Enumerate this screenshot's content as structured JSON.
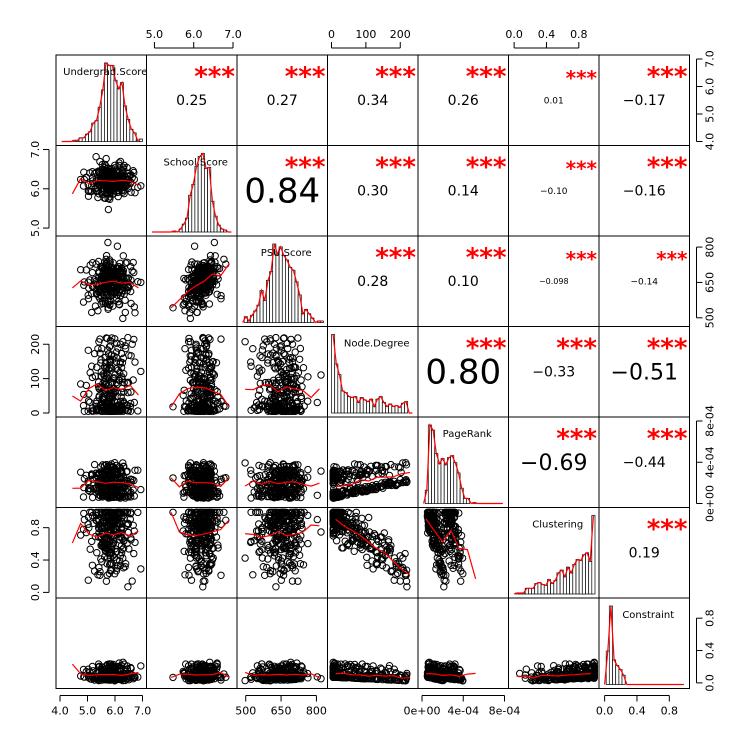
{
  "chart_data": {
    "type": "scatter-matrix",
    "variables": [
      "Undergrad.Score",
      "School.Score",
      "PSU.Score",
      "Node.Degree",
      "PageRank",
      "Clustering",
      "Constraint"
    ],
    "ranges": [
      [
        4.0,
        7.0
      ],
      [
        4.9,
        7.0
      ],
      [
        480,
        830
      ],
      [
        0,
        240
      ],
      [
        0,
        0.0008
      ],
      [
        -0.02,
        1.0
      ],
      [
        -0.02,
        1.0
      ]
    ],
    "hist_shapes": [
      "normal-left-skew",
      "normal-left-skew",
      "normal",
      "right-skew",
      "bimodal",
      "left-skew",
      "right-skew"
    ],
    "correlations": [
      {
        "i": 0,
        "j": 1,
        "value": "0.25",
        "stars": "***",
        "size": "small"
      },
      {
        "i": 0,
        "j": 2,
        "value": "0.27",
        "stars": "***",
        "size": "small"
      },
      {
        "i": 0,
        "j": 3,
        "value": "0.34",
        "stars": "***",
        "size": "small"
      },
      {
        "i": 0,
        "j": 4,
        "value": "0.26",
        "stars": "***",
        "size": "small"
      },
      {
        "i": 0,
        "j": 5,
        "value": "0.01",
        "stars": "***",
        "size": "tiny"
      },
      {
        "i": 0,
        "j": 6,
        "value": "−0.17",
        "stars": "***",
        "size": "small"
      },
      {
        "i": 1,
        "j": 2,
        "value": "0.84",
        "stars": "***",
        "size": "large"
      },
      {
        "i": 1,
        "j": 3,
        "value": "0.30",
        "stars": "***",
        "size": "small"
      },
      {
        "i": 1,
        "j": 4,
        "value": "0.14",
        "stars": "***",
        "size": "small"
      },
      {
        "i": 1,
        "j": 5,
        "value": "−0.10",
        "stars": "***",
        "size": "tiny"
      },
      {
        "i": 1,
        "j": 6,
        "value": "−0.16",
        "stars": "***",
        "size": "small"
      },
      {
        "i": 2,
        "j": 3,
        "value": "0.28",
        "stars": "***",
        "size": "small"
      },
      {
        "i": 2,
        "j": 4,
        "value": "0.10",
        "stars": "***",
        "size": "small"
      },
      {
        "i": 2,
        "j": 5,
        "value": "−0.098",
        "stars": "***",
        "size": "micro"
      },
      {
        "i": 2,
        "j": 6,
        "value": "−0.14",
        "stars": "***",
        "size": "tiny"
      },
      {
        "i": 3,
        "j": 4,
        "value": "0.80",
        "stars": "***",
        "size": "large"
      },
      {
        "i": 3,
        "j": 5,
        "value": "−0.33",
        "stars": "***",
        "size": "small"
      },
      {
        "i": 3,
        "j": 6,
        "value": "−0.51",
        "stars": "***",
        "size": "medium"
      },
      {
        "i": 4,
        "j": 5,
        "value": "−0.69",
        "stars": "***",
        "size": "medium"
      },
      {
        "i": 4,
        "j": 6,
        "value": "−0.44",
        "stars": "***",
        "size": "small"
      },
      {
        "i": 5,
        "j": 6,
        "value": "0.19",
        "stars": "***",
        "size": "small"
      }
    ],
    "axes": {
      "top": [
        {
          "col": 1,
          "ticks": [
            {
              "v": 5.0,
              "label": "5.0"
            },
            {
              "v": 6.0,
              "label": "6.0"
            },
            {
              "v": 7.0,
              "label": "7.0"
            }
          ]
        },
        {
          "col": 3,
          "ticks": [
            {
              "v": 0,
              "label": "0"
            },
            {
              "v": 100,
              "label": "100"
            },
            {
              "v": 200,
              "label": "200"
            }
          ]
        },
        {
          "col": 5,
          "ticks": [
            {
              "v": 0.0,
              "label": "0.0"
            },
            {
              "v": 0.4,
              "label": "0.4"
            },
            {
              "v": 0.8,
              "label": "0.8"
            }
          ]
        }
      ],
      "bottom": [
        {
          "col": 0,
          "ticks": [
            {
              "v": 4.0,
              "label": "4.0"
            },
            {
              "v": 5.0,
              "label": "5.0"
            },
            {
              "v": 6.0,
              "label": "6.0"
            },
            {
              "v": 7.0,
              "label": "7.0"
            }
          ]
        },
        {
          "col": 2,
          "ticks": [
            {
              "v": 500,
              "label": "500"
            },
            {
              "v": 650,
              "label": "650"
            },
            {
              "v": 800,
              "label": "800"
            }
          ]
        },
        {
          "col": 4,
          "ticks": [
            {
              "v": 0.0,
              "label": "0e+00"
            },
            {
              "v": 0.0004,
              "label": "4e-04"
            },
            {
              "v": 0.0008,
              "label": "8e-04"
            }
          ]
        },
        {
          "col": 6,
          "ticks": [
            {
              "v": 0.0,
              "label": "0.0"
            },
            {
              "v": 0.4,
              "label": "0.4"
            },
            {
              "v": 0.8,
              "label": "0.8"
            }
          ]
        }
      ],
      "left": [
        {
          "row": 1,
          "ticks": [
            {
              "v": 5.0,
              "label": "5.0"
            },
            {
              "v": 6.0,
              "label": "6.0"
            },
            {
              "v": 7.0,
              "label": "7.0"
            }
          ]
        },
        {
          "row": 3,
          "ticks": [
            {
              "v": 0,
              "label": "0"
            },
            {
              "v": 100,
              "label": "100"
            },
            {
              "v": 200,
              "label": "200"
            }
          ]
        },
        {
          "row": 5,
          "ticks": [
            {
              "v": 0.0,
              "label": "0.0"
            },
            {
              "v": 0.4,
              "label": "0.4"
            },
            {
              "v": 0.8,
              "label": "0.8"
            }
          ]
        }
      ],
      "right": [
        {
          "row": 0,
          "ticks": [
            {
              "v": 4.0,
              "label": "4.0"
            },
            {
              "v": 5.0,
              "label": "5.0"
            },
            {
              "v": 6.0,
              "label": "6.0"
            },
            {
              "v": 7.0,
              "label": "7.0"
            }
          ]
        },
        {
          "row": 2,
          "ticks": [
            {
              "v": 500,
              "label": "500"
            },
            {
              "v": 650,
              "label": "650"
            },
            {
              "v": 800,
              "label": "800"
            }
          ]
        },
        {
          "row": 4,
          "ticks": [
            {
              "v": 0.0,
              "label": "0e+00"
            },
            {
              "v": 0.0004,
              "label": "4e-04"
            },
            {
              "v": 0.0008,
              "label": "8e-04"
            }
          ]
        },
        {
          "row": 6,
          "ticks": [
            {
              "v": 0.0,
              "label": "0.0"
            },
            {
              "v": 0.4,
              "label": "0.4"
            },
            {
              "v": 0.8,
              "label": "0.8"
            }
          ]
        }
      ]
    },
    "grid": false,
    "fit_line_color": "#ff0000",
    "stars_color": "#ff0000",
    "point_color": "#000000"
  }
}
